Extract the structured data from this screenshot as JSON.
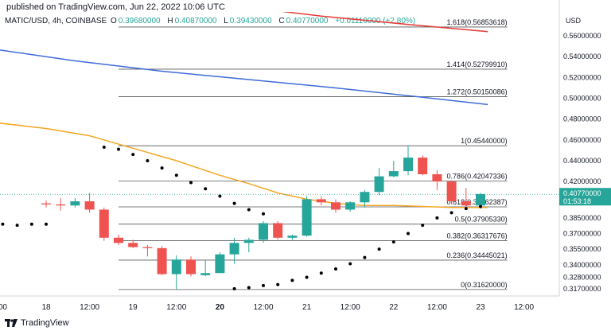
{
  "header": {
    "published": "published on TradingView.com, Jun 22, 2022 10:06 UTC",
    "symbol": "MATIC/USD, 4h, COINBASE",
    "open_label": "O",
    "open": "0.39680000",
    "high_label": "H",
    "high": "0.40870000",
    "low_label": "L",
    "low": "0.39430000",
    "close_label": "C",
    "close": "0.40770000",
    "change": "+0.01110000 (+2.80%)"
  },
  "footer": {
    "brand": "TradingView"
  },
  "colors": {
    "up": "#26a69a",
    "down": "#ef5350",
    "ma_red": "#e53935",
    "ma_blue": "#3f6ad8",
    "ma_orange": "#f5a623",
    "sar": "#000000",
    "fib": "#555555",
    "price_tag": "#26a69a"
  },
  "chart_data": {
    "type": "candlestick",
    "axis_title": "USD",
    "ylim": [
      0.31,
      0.583
    ],
    "y_ticks": [
      "0.56000000",
      "0.54000000",
      "0.52000000",
      "0.50000000",
      "0.48000000",
      "0.46000000",
      "0.44000000",
      "0.42000000",
      "0.38500000",
      "0.37000000",
      "0.35500000",
      "0.34000000",
      "0.32800000",
      "0.31700000"
    ],
    "y_tick_values": [
      0.56,
      0.54,
      0.52,
      0.5,
      0.48,
      0.46,
      0.44,
      0.42,
      0.385,
      0.37,
      0.355,
      0.34,
      0.328,
      0.317
    ],
    "x_ticks": [
      "00",
      "18",
      "12:00",
      "19",
      "12:00",
      "20",
      "12:00",
      "21",
      "12:00",
      "22",
      "12:00",
      "23",
      "12:00"
    ],
    "x_tick_bold": [
      false,
      false,
      false,
      false,
      false,
      true,
      false,
      false,
      false,
      false,
      false,
      false,
      false
    ],
    "x_tick_index": [
      -3,
      0,
      3,
      6,
      9,
      12,
      15,
      18,
      21,
      24,
      27,
      30,
      33
    ],
    "last_price": "0.40770000",
    "last_timer": "01:53:18",
    "fib_levels": [
      {
        "label": "1.618(0.56853618)",
        "value": 0.56853618
      },
      {
        "label": "1.414(0.52799910)",
        "value": 0.5279991
      },
      {
        "label": "1.272(0.50150086)",
        "value": 0.50150086
      },
      {
        "label": "1(0.45440000)",
        "value": 0.4544
      },
      {
        "label": "0.786(0.42047336)",
        "value": 0.42047336
      },
      {
        "label": "0.618(0.39562387)",
        "value": 0.39562387
      },
      {
        "label": "0.5(0.37905330)",
        "value": 0.3790533
      },
      {
        "label": "0.382(0.36317676)",
        "value": 0.36317676
      },
      {
        "label": "0.236(0.34445021)",
        "value": 0.34445021
      },
      {
        "label": "0(0.31620000)",
        "value": 0.3162
      }
    ],
    "candles": [
      {
        "o": 0.399,
        "h": 0.402,
        "l": 0.395,
        "c": 0.398
      },
      {
        "o": 0.398,
        "h": 0.404,
        "l": 0.392,
        "c": 0.397
      },
      {
        "o": 0.397,
        "h": 0.404,
        "l": 0.395,
        "c": 0.401
      },
      {
        "o": 0.401,
        "h": 0.409,
        "l": 0.39,
        "c": 0.393
      },
      {
        "o": 0.393,
        "h": 0.395,
        "l": 0.363,
        "c": 0.366
      },
      {
        "o": 0.366,
        "h": 0.369,
        "l": 0.359,
        "c": 0.361
      },
      {
        "o": 0.361,
        "h": 0.364,
        "l": 0.356,
        "c": 0.357
      },
      {
        "o": 0.357,
        "h": 0.359,
        "l": 0.348,
        "c": 0.356
      },
      {
        "o": 0.356,
        "h": 0.358,
        "l": 0.33,
        "c": 0.331
      },
      {
        "o": 0.331,
        "h": 0.349,
        "l": 0.316,
        "c": 0.345
      },
      {
        "o": 0.345,
        "h": 0.348,
        "l": 0.329,
        "c": 0.331
      },
      {
        "o": 0.33,
        "h": 0.344,
        "l": 0.329,
        "c": 0.332
      },
      {
        "o": 0.332,
        "h": 0.352,
        "l": 0.332,
        "c": 0.35
      },
      {
        "o": 0.35,
        "h": 0.366,
        "l": 0.341,
        "c": 0.361
      },
      {
        "o": 0.361,
        "h": 0.366,
        "l": 0.352,
        "c": 0.364
      },
      {
        "o": 0.364,
        "h": 0.382,
        "l": 0.361,
        "c": 0.38
      },
      {
        "o": 0.38,
        "h": 0.382,
        "l": 0.364,
        "c": 0.366
      },
      {
        "o": 0.366,
        "h": 0.369,
        "l": 0.364,
        "c": 0.368
      },
      {
        "o": 0.368,
        "h": 0.406,
        "l": 0.367,
        "c": 0.403
      },
      {
        "o": 0.403,
        "h": 0.406,
        "l": 0.397,
        "c": 0.4
      },
      {
        "o": 0.4,
        "h": 0.403,
        "l": 0.39,
        "c": 0.393
      },
      {
        "o": 0.393,
        "h": 0.401,
        "l": 0.391,
        "c": 0.4
      },
      {
        "o": 0.4,
        "h": 0.412,
        "l": 0.395,
        "c": 0.41
      },
      {
        "o": 0.41,
        "h": 0.433,
        "l": 0.407,
        "c": 0.425
      },
      {
        "o": 0.425,
        "h": 0.44,
        "l": 0.424,
        "c": 0.43
      },
      {
        "o": 0.43,
        "h": 0.454,
        "l": 0.426,
        "c": 0.443
      },
      {
        "o": 0.443,
        "h": 0.445,
        "l": 0.426,
        "c": 0.427
      },
      {
        "o": 0.427,
        "h": 0.431,
        "l": 0.412,
        "c": 0.42
      },
      {
        "o": 0.42,
        "h": 0.421,
        "l": 0.398,
        "c": 0.401
      },
      {
        "o": 0.401,
        "h": 0.414,
        "l": 0.394,
        "c": 0.397
      },
      {
        "o": 0.397,
        "h": 0.409,
        "l": 0.394,
        "c": 0.408
      }
    ],
    "ma_red": [
      [
        1,
        0.606
      ],
      [
        7,
        0.599
      ],
      [
        13,
        0.589
      ],
      [
        19,
        0.579
      ],
      [
        25,
        0.571
      ],
      [
        30.5,
        0.564
      ]
    ],
    "ma_blue": [
      [
        -9,
        0.559
      ],
      [
        -4,
        0.548
      ],
      [
        2,
        0.536
      ],
      [
        8,
        0.526
      ],
      [
        14,
        0.518
      ],
      [
        20,
        0.51
      ],
      [
        26,
        0.501
      ],
      [
        30.5,
        0.494
      ]
    ],
    "ma_orange": [
      [
        -9,
        0.482
      ],
      [
        -5,
        0.479
      ],
      [
        0,
        0.471
      ],
      [
        3,
        0.464
      ],
      [
        6,
        0.452
      ],
      [
        9,
        0.44
      ],
      [
        12,
        0.426
      ],
      [
        14,
        0.418
      ],
      [
        16,
        0.409
      ],
      [
        18,
        0.403
      ],
      [
        20,
        0.399
      ],
      [
        22,
        0.397
      ],
      [
        24,
        0.397
      ],
      [
        26,
        0.396
      ],
      [
        28,
        0.395
      ],
      [
        30.5,
        0.395
      ]
    ],
    "sar": [
      [
        4,
        0.453
      ],
      [
        5,
        0.451
      ],
      [
        6,
        0.446
      ],
      [
        7,
        0.44
      ],
      [
        8,
        0.433
      ],
      [
        9,
        0.426
      ],
      [
        10,
        0.419
      ],
      [
        11,
        0.413
      ],
      [
        12,
        0.406
      ],
      [
        13,
        0.399
      ],
      [
        14,
        0.393
      ],
      [
        15,
        0.389
      ],
      [
        -3,
        0.379
      ],
      [
        -2,
        0.378
      ],
      [
        -1,
        0.379
      ],
      [
        0,
        0.379
      ],
      [
        13,
        0.317
      ],
      [
        14,
        0.318
      ],
      [
        15,
        0.32
      ],
      [
        16,
        0.321
      ],
      [
        17,
        0.325
      ],
      [
        18,
        0.328
      ],
      [
        19,
        0.332
      ],
      [
        20,
        0.336
      ],
      [
        21,
        0.341
      ],
      [
        22,
        0.347
      ],
      [
        23,
        0.355
      ],
      [
        24,
        0.362
      ],
      [
        25,
        0.37
      ],
      [
        26,
        0.378
      ],
      [
        27,
        0.385
      ],
      [
        28,
        0.39
      ],
      [
        29,
        0.394
      ],
      [
        30,
        0.396
      ]
    ]
  }
}
